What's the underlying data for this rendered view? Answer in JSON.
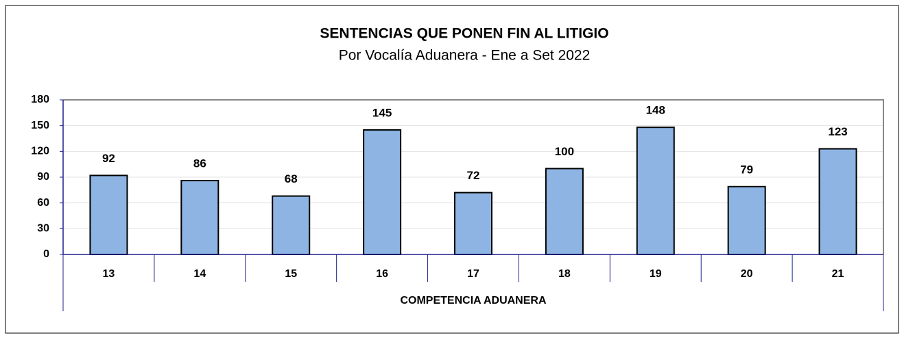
{
  "chart_data": {
    "type": "bar",
    "title": "SENTENCIAS QUE PONEN FIN AL LITIGIO",
    "subtitle": "Por Vocalía Aduanera - Ene a Set 2022",
    "x_label": "COMPETENCIA ADUANERA",
    "categories": [
      "13",
      "14",
      "15",
      "16",
      "17",
      "18",
      "19",
      "20",
      "21"
    ],
    "values": [
      92,
      86,
      68,
      145,
      72,
      100,
      148,
      79,
      123
    ],
    "color": "#8db4e2",
    "ylim": [
      0,
      180
    ],
    "yticks": [
      0,
      30,
      60,
      90,
      120,
      150,
      180
    ],
    "grid": true
  }
}
